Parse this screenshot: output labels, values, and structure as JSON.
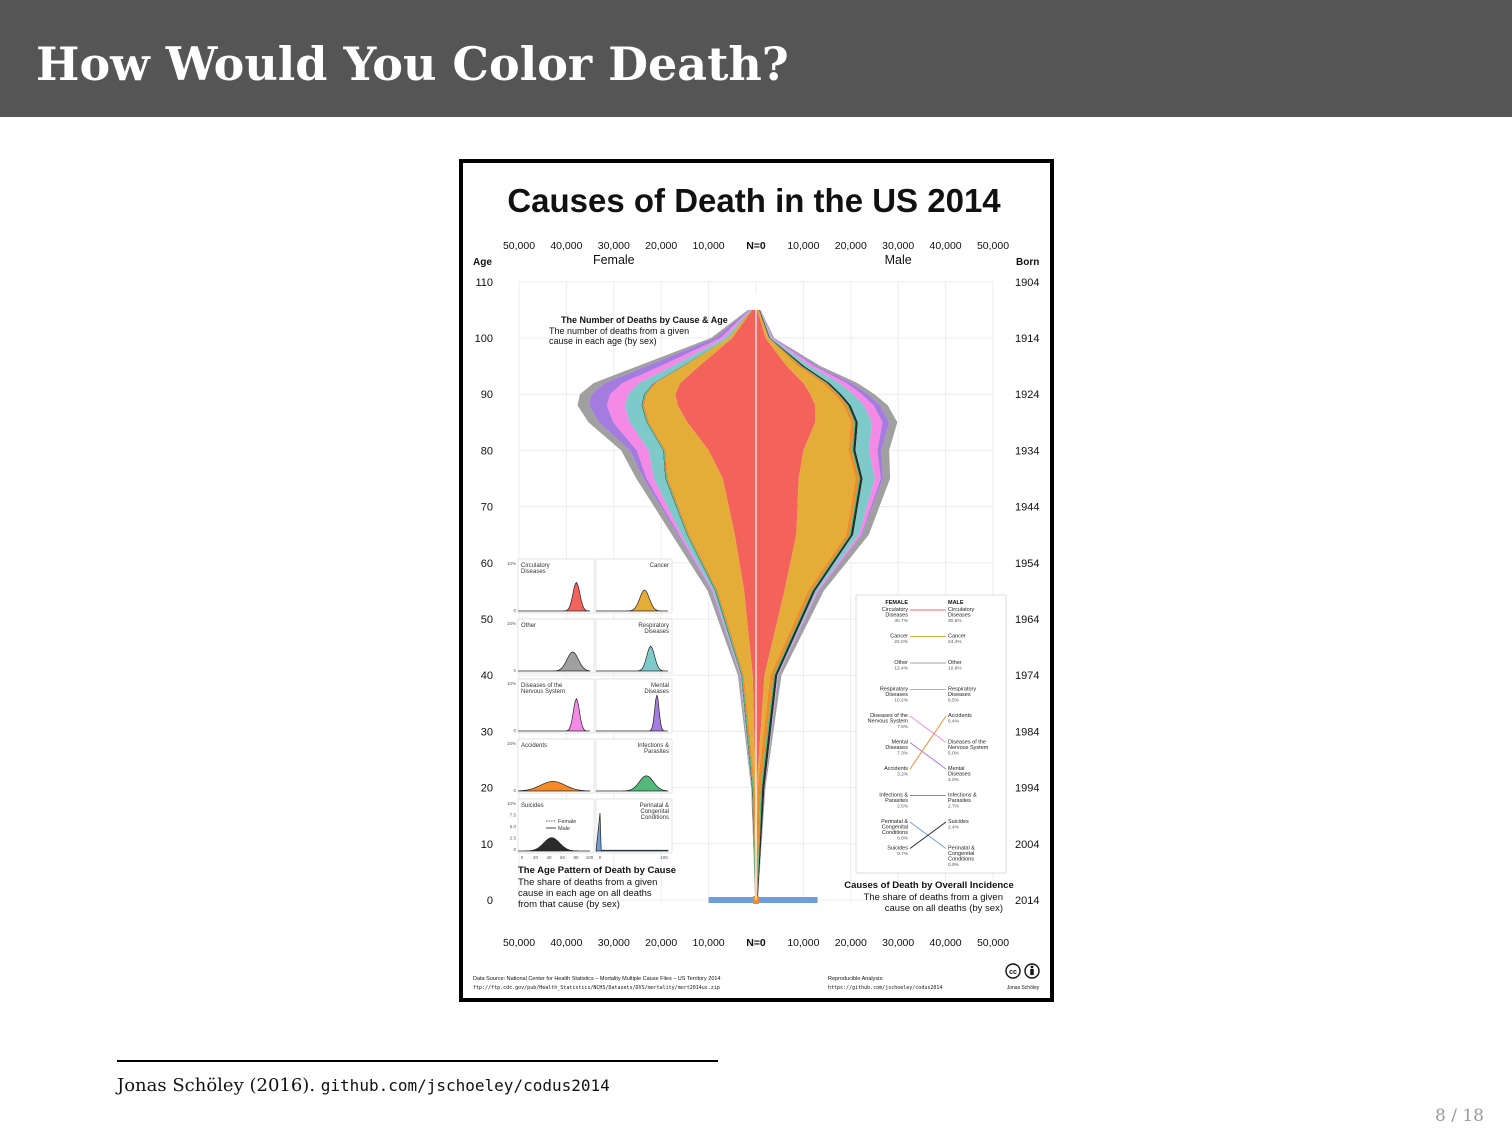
{
  "slide": {
    "title": "How Would You Color Death?",
    "page": "8 / 18",
    "citation_author": "Jonas Schöley (2016). ",
    "citation_link": "github.com/jschoeley/codus2014"
  },
  "chart_data": {
    "type": "area",
    "title": "Causes of Death in the US 2014",
    "x_ticks": [
      "50,000",
      "40,000",
      "30,000",
      "20,000",
      "10,000",
      "N=0",
      "10,000",
      "20,000",
      "30,000",
      "40,000",
      "50,000"
    ],
    "left_label": "Female",
    "right_label": "Male",
    "age_label": "Age",
    "born_label": "Born",
    "age_ticks": [
      "110",
      "100",
      "90",
      "80",
      "70",
      "60",
      "50",
      "40",
      "30",
      "20",
      "10",
      "0"
    ],
    "born_ticks": [
      "1904",
      "1914",
      "1924",
      "1934",
      "1944",
      "1954",
      "1964",
      "1974",
      "1984",
      "1994",
      "2004",
      "2014"
    ],
    "xlim": [
      -50000,
      50000
    ],
    "ylim": [
      0,
      110
    ],
    "grid": true,
    "colors": {
      "circulatory": "#f4625c",
      "cancer": "#e4ad37",
      "respiratory": "#7ec9c9",
      "nervous": "#f589e6",
      "mental": "#a47ce0",
      "other": "#a0a0a0",
      "accidents": "#f58b27",
      "infections": "#52b97a",
      "suicides": "#2b2b2b",
      "perinatal": "#6f9fd8"
    },
    "series": [
      {
        "key": "circulatory",
        "name": "Circulatory Diseases",
        "ages": [
          0,
          20,
          40,
          55,
          65,
          75,
          80,
          85,
          88,
          90,
          92,
          95,
          100,
          105
        ],
        "female": [
          0,
          80,
          700,
          2500,
          4500,
          7000,
          10000,
          14500,
          16500,
          17000,
          16000,
          12000,
          5000,
          800
        ],
        "male": [
          0,
          150,
          1800,
          6000,
          8500,
          9000,
          10000,
          12500,
          12500,
          11500,
          10000,
          6500,
          2000,
          300
        ]
      },
      {
        "key": "cancer",
        "name": "Cancer",
        "ages": [
          0,
          20,
          40,
          55,
          65,
          75,
          80,
          85,
          88,
          90,
          92,
          95,
          100,
          105
        ],
        "female": [
          0,
          150,
          1800,
          5500,
          9500,
          11500,
          9000,
          8000,
          7000,
          6000,
          5000,
          3000,
          700,
          100
        ],
        "male": [
          0,
          150,
          1200,
          5000,
          10500,
          12000,
          9500,
          7500,
          6000,
          5000,
          4000,
          2200,
          500,
          80
        ]
      },
      {
        "key": "respiratory",
        "name": "Respiratory Diseases",
        "ages": [
          0,
          20,
          40,
          55,
          65,
          75,
          80,
          85,
          88,
          90,
          92,
          95,
          100,
          105
        ],
        "female": [
          0,
          20,
          100,
          400,
          1100,
          2400,
          3000,
          3500,
          3500,
          3300,
          3000,
          2000,
          700,
          100
        ],
        "male": [
          0,
          20,
          100,
          400,
          1200,
          2600,
          2800,
          3000,
          2800,
          2500,
          2100,
          1200,
          300,
          50
        ]
      },
      {
        "key": "nervous",
        "name": "Diseases of the Nervous System",
        "ages": [
          0,
          20,
          40,
          55,
          65,
          75,
          80,
          85,
          88,
          90,
          92,
          95,
          100,
          105
        ],
        "female": [
          0,
          20,
          80,
          200,
          500,
          1500,
          2500,
          3500,
          3800,
          3800,
          3500,
          2500,
          900,
          150
        ],
        "male": [
          0,
          20,
          80,
          250,
          500,
          1200,
          1800,
          2200,
          2000,
          1800,
          1500,
          900,
          250,
          40
        ]
      },
      {
        "key": "mental",
        "name": "Mental Diseases",
        "ages": [
          0,
          20,
          40,
          55,
          65,
          75,
          80,
          85,
          88,
          90,
          92,
          95,
          100,
          105
        ],
        "female": [
          0,
          10,
          80,
          150,
          300,
          700,
          1500,
          3000,
          3800,
          4000,
          3800,
          3000,
          1200,
          200
        ],
        "male": [
          0,
          10,
          80,
          150,
          200,
          500,
          900,
          1400,
          1400,
          1300,
          1100,
          600,
          150,
          20
        ]
      },
      {
        "key": "other",
        "name": "Other",
        "ages": [
          0,
          20,
          40,
          55,
          65,
          75,
          80,
          85,
          88,
          90,
          92,
          95,
          100,
          105
        ],
        "female": [
          0,
          100,
          400,
          800,
          1200,
          1500,
          1800,
          2200,
          2400,
          2400,
          2300,
          1800,
          800,
          150
        ],
        "male": [
          0,
          150,
          600,
          1000,
          1400,
          1500,
          1600,
          1700,
          1600,
          1400,
          1200,
          700,
          200,
          30
        ]
      }
    ],
    "thin_layers": [
      {
        "key": "accidents",
        "name": "Accidents",
        "female": 300,
        "male": 700
      },
      {
        "key": "infections",
        "name": "Infections & Parasites",
        "female": 250,
        "male": 300
      },
      {
        "key": "suicides",
        "name": "Suicides",
        "female": 100,
        "male": 500
      }
    ],
    "infant": {
      "age": 0,
      "female": 10000,
      "male": 13000
    },
    "annotation_top": {
      "title": "The Number of Deaths by Cause & Age",
      "line1": "The number of deaths from a given",
      "line2": "cause in each age (by sex)"
    },
    "small_multiples": {
      "title": "The Age Pattern of Death by Cause",
      "line1": "The share of deaths from a given",
      "line2": "cause in each age on all deaths",
      "line3": "from that cause (by sex)",
      "y_top": "10%",
      "y_zero": "0",
      "suicide_ticks": [
        "10%",
        "7.5",
        "5.0",
        "2.5",
        "0"
      ],
      "age_ticks_left": [
        "0",
        "20",
        "40",
        "60",
        "80",
        "100"
      ],
      "age_ticks_right": [
        "0",
        "100"
      ],
      "legend_female": "Female",
      "legend_male": "Male",
      "panels": [
        {
          "key": "circulatory",
          "name": "Circulatory\nDiseases",
          "peak": 88,
          "spread": 8,
          "h": 0.75
        },
        {
          "key": "cancer",
          "name": "Cancer",
          "peak": 72,
          "spread": 11,
          "h": 0.55
        },
        {
          "key": "other",
          "name": "Other",
          "peak": 82,
          "spread": 13,
          "h": 0.5
        },
        {
          "key": "respiratory",
          "name": "Respiratory\nDiseases",
          "peak": 82,
          "spread": 9,
          "h": 0.65
        },
        {
          "key": "nervous",
          "name": "Diseases of the\nNervous System",
          "peak": 88,
          "spread": 7,
          "h": 0.85
        },
        {
          "key": "mental",
          "name": "Mental\nDiseases",
          "peak": 92,
          "spread": 5,
          "h": 0.95
        },
        {
          "key": "accidents",
          "name": "Accidents",
          "peak": 50,
          "spread": 28,
          "h": 0.25
        },
        {
          "key": "infections",
          "name": "Infections &\nParasites",
          "peak": 75,
          "spread": 16,
          "h": 0.4
        },
        {
          "key": "suicides",
          "name": "Suicides",
          "peak": 48,
          "spread": 18,
          "h": 0.35
        },
        {
          "key": "perinatal",
          "name": "Perinatal &\nCongenital\nConditions",
          "peak": 0,
          "spread": 1,
          "h": 1.0
        }
      ]
    },
    "incidence": {
      "title": "Causes of Death by Overall Incidence",
      "line1": "The share of deaths from a given",
      "line2": "cause on all deaths (by sex)",
      "female_header": "FEMALE",
      "male_header": "MALE",
      "female": [
        {
          "key": "circulatory",
          "label": "Circulatory\nDiseases",
          "pct": "30.7%"
        },
        {
          "key": "cancer",
          "label": "Cancer",
          "pct": "22.0%"
        },
        {
          "key": "other",
          "label": "Other",
          "pct": "12.4%"
        },
        {
          "key": "respiratory",
          "label": "Respiratory\nDiseases",
          "pct": "10.2%"
        },
        {
          "key": "nervous",
          "label": "Diseases of the\nNervous System",
          "pct": "7.5%"
        },
        {
          "key": "mental",
          "label": "Mental\nDiseases",
          "pct": "7.3%"
        },
        {
          "key": "accidents",
          "label": "Accidents",
          "pct": "3.2%"
        },
        {
          "key": "infections",
          "label": "Infections &\nParasites",
          "pct": "2.5%"
        },
        {
          "key": "perinatal",
          "label": "Perinatal &\nCongenital\nConditions",
          "pct": "0.8%"
        },
        {
          "key": "suicides",
          "label": "Suicides",
          "pct": "0.7%"
        }
      ],
      "male": [
        {
          "key": "circulatory",
          "label": "Circulatory\nDiseases",
          "pct": "30.8%"
        },
        {
          "key": "cancer",
          "label": "Cancer",
          "pct": "24.4%"
        },
        {
          "key": "other",
          "label": "Other",
          "pct": "10.9%"
        },
        {
          "key": "respiratory",
          "label": "Respiratory\nDiseases",
          "pct": "8.5%"
        },
        {
          "key": "accidents",
          "label": "Accidents",
          "pct": "6.4%"
        },
        {
          "key": "nervous",
          "label": "Diseases of the\nNervous System",
          "pct": "5.0%"
        },
        {
          "key": "mental",
          "label": "Mental\nDiseases",
          "pct": "4.0%"
        },
        {
          "key": "infections",
          "label": "Infections &\nParasites",
          "pct": "2.7%"
        },
        {
          "key": "suicides",
          "label": "Suicides",
          "pct": "2.4%"
        },
        {
          "key": "perinatal",
          "label": "Perinatal &\nCongenital\nConditions",
          "pct": "0.9%"
        }
      ]
    },
    "source_line1": "Data Source: National Center for Health Statistics – Mortality Multiple Cause Files – US Territory 2014",
    "source_line2": "ftp://ftp.cdc.gov/pub/Health_Statistics/NCHS/Datasets/DVS/mortality/mort2014us.zip",
    "repro_line1": "Reproducible Analysis:",
    "repro_line2": "https://github.com/jschoeley/codus2014",
    "author": "Jonas Schöley",
    "cc_badge": "cc",
    "license_icon": "cc-by-person-icon"
  }
}
